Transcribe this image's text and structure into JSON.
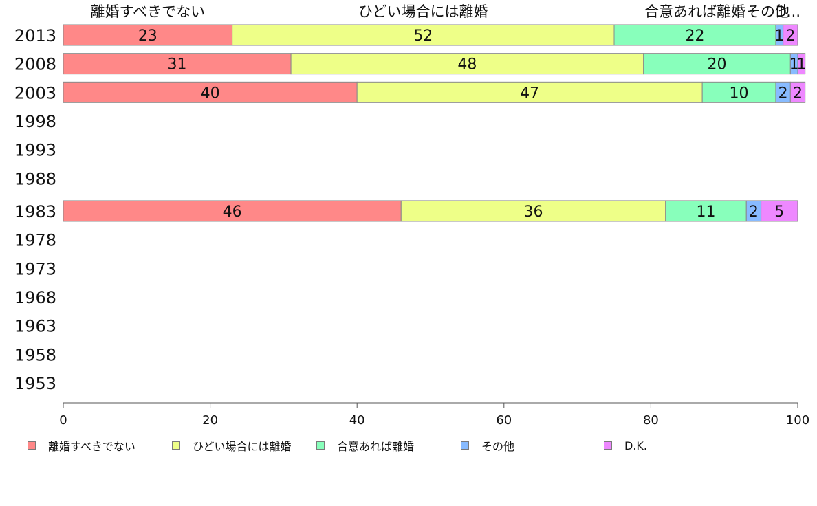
{
  "chart_data": {
    "type": "bar",
    "orientation": "horizontal",
    "stacked": true,
    "categories": [
      "2013",
      "2008",
      "2003",
      "1998",
      "1993",
      "1988",
      "1983",
      "1978",
      "1973",
      "1968",
      "1963",
      "1958",
      "1953"
    ],
    "series": [
      {
        "name": "離婚すべきでない",
        "values": [
          23,
          31,
          40,
          null,
          null,
          null,
          46,
          null,
          null,
          null,
          null,
          null,
          null
        ],
        "color": "#ff8888"
      },
      {
        "name": "ひどい場合には離婚",
        "values": [
          52,
          48,
          47,
          null,
          null,
          null,
          36,
          null,
          null,
          null,
          null,
          null,
          null
        ],
        "color": "#eeff88"
      },
      {
        "name": "合意あれば離婚",
        "values": [
          22,
          20,
          10,
          null,
          null,
          null,
          11,
          null,
          null,
          null,
          null,
          null,
          null
        ],
        "color": "#88ffbb"
      },
      {
        "name": "その他",
        "values": [
          1,
          1,
          2,
          null,
          null,
          null,
          2,
          null,
          null,
          null,
          null,
          null,
          null
        ],
        "color": "#88bbff"
      },
      {
        "name": "D.K.",
        "values": [
          2,
          1,
          2,
          null,
          null,
          null,
          5,
          null,
          null,
          null,
          null,
          null,
          null
        ],
        "color": "#ee88ff"
      }
    ],
    "top_labels": [
      "離婚すべきでない",
      "ひどい場合には離婚",
      "合意あれば離婚",
      "その他",
      "D..."
    ],
    "xlim": [
      0,
      100
    ],
    "xticks": [
      0,
      20,
      40,
      60,
      80,
      100
    ],
    "legend_position": "bottom",
    "grid": false
  }
}
